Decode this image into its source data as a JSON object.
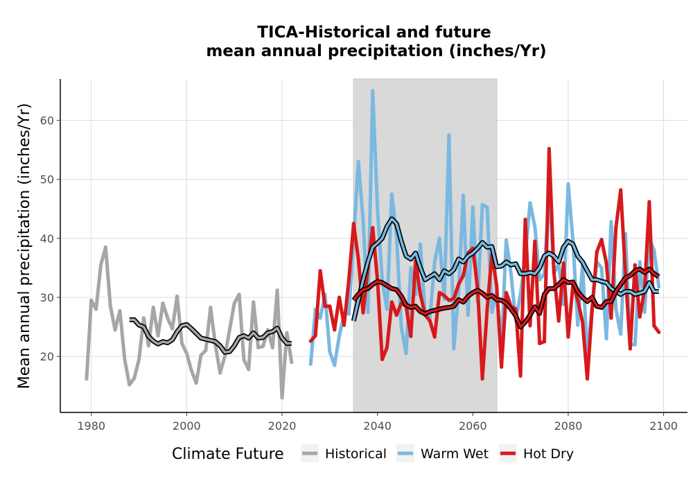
{
  "chart_data": {
    "type": "line",
    "title": "TICA-Historical and future\nmean annual precipitation (inches/Yr)",
    "title_lines": [
      "TICA-Historical and future",
      "mean annual precipitation (inches/Yr)"
    ],
    "xlabel": "",
    "ylabel": "Mean annual precipitation (inches/Yr)",
    "xlim": [
      1973.5,
      2105
    ],
    "ylim": [
      10.5,
      67
    ],
    "xticks": [
      1980,
      2000,
      2020,
      2040,
      2060,
      2080,
      2100
    ],
    "yticks": [
      20,
      30,
      40,
      50,
      60
    ],
    "grid": true,
    "shaded_period": {
      "start": 2035,
      "end": 2065,
      "color": "#d9d9d9"
    },
    "legend": {
      "title": "Climate Future",
      "position": "bottom"
    },
    "series": [
      {
        "name": "Historical",
        "color": "#a6a6a6",
        "x": [
          1979,
          1980,
          1981,
          1982,
          1983,
          1984,
          1985,
          1986,
          1987,
          1988,
          1989,
          1990,
          1991,
          1992,
          1993,
          1994,
          1995,
          1996,
          1997,
          1998,
          1999,
          2000,
          2001,
          2002,
          2003,
          2004,
          2005,
          2006,
          2007,
          2008,
          2009,
          2010,
          2011,
          2012,
          2013,
          2014,
          2015,
          2016,
          2017,
          2018,
          2019,
          2020,
          2021,
          2022
        ],
        "values": [
          16.2,
          29.5,
          28,
          35.5,
          38.5,
          28.5,
          24.5,
          27.7,
          19.5,
          15.2,
          16.3,
          19.5,
          26.5,
          21.8,
          28.3,
          23.5,
          29,
          26.5,
          24.7,
          30.2,
          22.2,
          20.5,
          17.6,
          15.5,
          20.2,
          21,
          28.3,
          22,
          17.2,
          20,
          24.5,
          29,
          30.5,
          19.4,
          17.8,
          29.2,
          21.5,
          21.7,
          24.5,
          21.5,
          31.2,
          13,
          24,
          19
        ],
        "smooth_x": [
          1988,
          1989,
          1990,
          1991,
          1992,
          1993,
          1994,
          1995,
          1996,
          1997,
          1998,
          1999,
          2000,
          2001,
          2002,
          2003,
          2004,
          2005,
          2006,
          2007,
          2008,
          2009,
          2010,
          2011,
          2012,
          2013,
          2014,
          2015,
          2016,
          2017,
          2018,
          2019,
          2020,
          2021,
          2022
        ],
        "smooth": [
          26.2,
          26.2,
          25.3,
          25,
          23.4,
          22.6,
          22.1,
          22.5,
          22.3,
          22.8,
          24.2,
          25.2,
          25.4,
          24.7,
          23.9,
          23.1,
          22.9,
          22.7,
          22.5,
          21.8,
          20.7,
          20.8,
          21.8,
          23.2,
          23.5,
          23.1,
          24,
          23.1,
          23.2,
          24,
          24.2,
          24.8,
          23.1,
          22.2,
          22.2
        ]
      },
      {
        "name": "Warm Wet",
        "color": "#7ab8e0",
        "x": [
          2026,
          2027,
          2028,
          2029,
          2030,
          2031,
          2032,
          2033,
          2034,
          2035,
          2036,
          2037,
          2038,
          2039,
          2040,
          2041,
          2042,
          2043,
          2044,
          2045,
          2046,
          2047,
          2048,
          2049,
          2050,
          2051,
          2052,
          2053,
          2054,
          2055,
          2056,
          2057,
          2058,
          2059,
          2060,
          2061,
          2062,
          2063,
          2064,
          2065,
          2066,
          2067,
          2068,
          2069,
          2070,
          2071,
          2072,
          2073,
          2074,
          2075,
          2076,
          2077,
          2078,
          2079,
          2080,
          2081,
          2082,
          2083,
          2084,
          2085,
          2086,
          2087,
          2088,
          2089,
          2090,
          2091,
          2092,
          2093,
          2094,
          2095,
          2096,
          2097,
          2098,
          2099
        ],
        "values": [
          18.7,
          28,
          26.5,
          30.5,
          20.8,
          18.5,
          23.5,
          27.2,
          27.2,
          40,
          53,
          43,
          27.5,
          65,
          45,
          33,
          28,
          47.5,
          40.5,
          25,
          20.5,
          35,
          30.5,
          39,
          27,
          26.5,
          36,
          40,
          29.7,
          57.5,
          21.3,
          31,
          47.3,
          27,
          45.3,
          29.3,
          45.7,
          45.3,
          27.5,
          31,
          21.8,
          39.7,
          34,
          26,
          30.5,
          37,
          46,
          42,
          33,
          34,
          48.3,
          34,
          35.7,
          28.8,
          49.2,
          39.5,
          25.3,
          35.5,
          20.2,
          28.5,
          36,
          35,
          23,
          42.8,
          28,
          23.8,
          40.8,
          22,
          22,
          36,
          27.5,
          40,
          38,
          31.8
        ],
        "smooth_x": [
          2035,
          2036,
          2037,
          2038,
          2039,
          2040,
          2041,
          2042,
          2043,
          2044,
          2045,
          2046,
          2047,
          2048,
          2049,
          2050,
          2051,
          2052,
          2053,
          2054,
          2055,
          2056,
          2057,
          2058,
          2059,
          2060,
          2061,
          2062,
          2063,
          2064,
          2065,
          2066,
          2067,
          2068,
          2069,
          2070,
          2071,
          2072,
          2073,
          2074,
          2075,
          2076,
          2077,
          2078,
          2079,
          2080,
          2081,
          2082,
          2083,
          2084,
          2085,
          2086,
          2087,
          2088,
          2089,
          2090,
          2091,
          2092,
          2093,
          2094,
          2095,
          2096,
          2097,
          2098,
          2099
        ],
        "smooth": [
          26,
          29.5,
          33,
          36,
          38.5,
          39.2,
          40,
          42,
          43.3,
          42.5,
          39.5,
          37,
          36.5,
          37.5,
          35,
          33,
          33.5,
          34,
          33,
          34.5,
          34,
          34.7,
          36.5,
          36,
          37,
          37.5,
          38.3,
          39.3,
          38.5,
          38.6,
          35.2,
          35.3,
          36,
          35.5,
          35.7,
          34,
          34,
          34.2,
          34,
          35,
          37,
          37.5,
          37,
          36,
          38.5,
          39.5,
          39,
          37,
          36,
          34.5,
          33,
          33,
          32.7,
          32.5,
          31.5,
          31,
          30.5,
          31,
          31,
          30.5,
          30.7,
          31,
          32.5,
          31,
          31
        ]
      },
      {
        "name": "Hot Dry",
        "color": "#d7191c",
        "x": [
          2026,
          2027,
          2028,
          2029,
          2030,
          2031,
          2032,
          2033,
          2034,
          2035,
          2036,
          2037,
          2038,
          2039,
          2040,
          2041,
          2042,
          2043,
          2044,
          2045,
          2046,
          2047,
          2048,
          2049,
          2050,
          2051,
          2052,
          2053,
          2054,
          2055,
          2056,
          2057,
          2058,
          2059,
          2060,
          2061,
          2062,
          2063,
          2064,
          2065,
          2066,
          2067,
          2068,
          2069,
          2070,
          2071,
          2072,
          2073,
          2074,
          2075,
          2076,
          2077,
          2078,
          2079,
          2080,
          2081,
          2082,
          2083,
          2084,
          2085,
          2086,
          2087,
          2088,
          2089,
          2090,
          2091,
          2092,
          2093,
          2094,
          2095,
          2096,
          2097,
          2098,
          2099
        ],
        "values": [
          22.6,
          23.5,
          34.5,
          28.5,
          28.5,
          24.5,
          30,
          25.3,
          33,
          42.5,
          36.5,
          27.4,
          35,
          41.8,
          33,
          19.5,
          21.5,
          29.2,
          27,
          29,
          28.5,
          23.4,
          36.2,
          30.5,
          27,
          26,
          23.3,
          30.8,
          30.3,
          29.5,
          29.8,
          32.2,
          33.7,
          37.5,
          38.3,
          31.5,
          16.2,
          28,
          37.3,
          32,
          18.2,
          30.8,
          28.5,
          28,
          16.7,
          43.2,
          25.2,
          39.5,
          22.2,
          22.5,
          55.2,
          34.3,
          26,
          35.8,
          23.3,
          32.2,
          29.5,
          25.8,
          16.2,
          27.8,
          37.7,
          39.8,
          35.8,
          26.5,
          41.8,
          48.2,
          34,
          21.3,
          35.5,
          26.7,
          31.2,
          46.2,
          25.2,
          24.1
        ],
        "smooth_x": [
          2035,
          2036,
          2037,
          2038,
          2039,
          2040,
          2041,
          2042,
          2043,
          2044,
          2045,
          2046,
          2047,
          2048,
          2049,
          2050,
          2051,
          2052,
          2053,
          2054,
          2055,
          2056,
          2057,
          2058,
          2059,
          2060,
          2061,
          2062,
          2063,
          2064,
          2065,
          2066,
          2067,
          2068,
          2069,
          2070,
          2071,
          2072,
          2073,
          2074,
          2075,
          2076,
          2077,
          2078,
          2079,
          2080,
          2081,
          2082,
          2083,
          2084,
          2085,
          2086,
          2087,
          2088,
          2089,
          2090,
          2091,
          2092,
          2093,
          2094,
          2095,
          2096,
          2097,
          2098,
          2099
        ],
        "smooth": [
          29.5,
          30.5,
          31.3,
          31.5,
          32.2,
          32.7,
          32.5,
          32,
          31.5,
          31.3,
          30.2,
          28.7,
          28.3,
          28.5,
          27.6,
          27.2,
          27.6,
          27.8,
          28,
          28.2,
          28.3,
          28.5,
          29.6,
          29.2,
          30.2,
          30.8,
          31.2,
          30.7,
          30,
          30.3,
          29.6,
          29.5,
          29,
          28,
          26.9,
          25,
          25.8,
          27,
          28.4,
          27.3,
          30.5,
          31.5,
          31.5,
          32.2,
          33,
          32.5,
          32.6,
          31,
          30,
          29.3,
          30,
          28.5,
          28.3,
          29.3,
          29.3,
          31,
          32.2,
          33.3,
          33.7,
          34.5,
          34.8,
          34.2,
          34.8,
          34,
          33.5
        ]
      }
    ]
  }
}
